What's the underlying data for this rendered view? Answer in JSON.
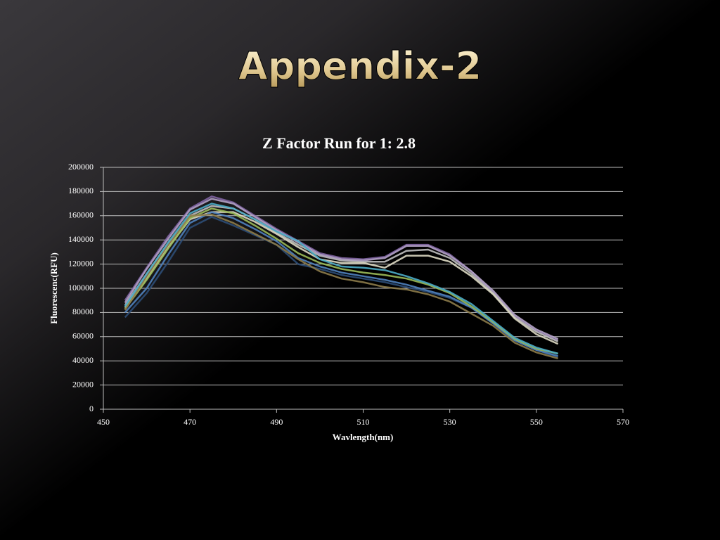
{
  "title": "Appendix-2",
  "chart_data": {
    "type": "line",
    "title": "Z Factor Run for 1: 2.8",
    "x_label": "Wavlength(nm)",
    "y_label": "Fluorescenc(RFU)",
    "x": [
      455,
      460,
      465,
      470,
      475,
      480,
      485,
      490,
      495,
      500,
      505,
      510,
      515,
      520,
      525,
      530,
      535,
      540,
      545,
      550,
      555
    ],
    "xlim": [
      450,
      570
    ],
    "xticks": [
      450,
      470,
      490,
      510,
      530,
      550,
      570
    ],
    "ylim": [
      0,
      200000
    ],
    "yticks": [
      0,
      20000,
      40000,
      60000,
      80000,
      100000,
      120000,
      140000,
      160000,
      180000,
      200000
    ],
    "grid": true,
    "series": [
      {
        "color": "#8064a2",
        "values": [
          90000,
          117000,
          143000,
          166000,
          176000,
          171000,
          160000,
          149000,
          139000,
          129000,
          125000,
          124000,
          126000,
          136000,
          136000,
          128000,
          114000,
          97000,
          77000,
          65000,
          57000
        ]
      },
      {
        "color": "#bfbfbf",
        "values": [
          86000,
          112000,
          137000,
          160000,
          168000,
          166000,
          157000,
          146000,
          136000,
          127000,
          123000,
          122000,
          122000,
          131000,
          132000,
          125000,
          112000,
          96000,
          76000,
          64000,
          56000
        ]
      },
      {
        "color": "#ddd9c3",
        "values": [
          84000,
          108000,
          134000,
          157000,
          163000,
          163000,
          155000,
          145000,
          134000,
          124000,
          121000,
          121000,
          117000,
          127000,
          127000,
          122000,
          110000,
          95000,
          75000,
          62000,
          54000
        ]
      },
      {
        "color": "#b3a2c7",
        "values": [
          88000,
          116000,
          141000,
          165000,
          174000,
          170000,
          159000,
          148000,
          138000,
          128000,
          124000,
          123000,
          125000,
          135000,
          135000,
          127000,
          114000,
          98000,
          78000,
          66000,
          58000
        ]
      },
      {
        "color": "#2c4d75",
        "values": [
          76000,
          96000,
          122000,
          150000,
          159000,
          152000,
          144000,
          136000,
          120000,
          116000,
          111000,
          108000,
          105000,
          101000,
          97000,
          92000,
          84000,
          71000,
          57000,
          49000,
          43000
        ]
      },
      {
        "color": "#4f81bd",
        "values": [
          80000,
          100000,
          128000,
          154000,
          163000,
          158000,
          149000,
          139000,
          125000,
          118000,
          113000,
          110000,
          107000,
          103000,
          98000,
          93000,
          84000,
          71000,
          57000,
          49000,
          44000
        ]
      },
      {
        "color": "#9bbb59",
        "values": [
          83000,
          107000,
          133000,
          158000,
          166000,
          162000,
          152000,
          141000,
          129000,
          121000,
          116000,
          113000,
          111000,
          108000,
          103000,
          96000,
          85000,
          72000,
          58000,
          50000,
          46000
        ]
      },
      {
        "color": "#8c7b4a",
        "values": [
          82000,
          110000,
          136000,
          160000,
          161000,
          154000,
          145000,
          136000,
          124000,
          114000,
          108000,
          105000,
          101000,
          99000,
          95000,
          89000,
          79000,
          69000,
          55000,
          47000,
          42000
        ]
      },
      {
        "color": "#4bacc6",
        "values": [
          85000,
          112000,
          138000,
          162000,
          170000,
          166000,
          157000,
          147000,
          139000,
          124000,
          118000,
          117000,
          115000,
          110000,
          104000,
          97000,
          87000,
          73000,
          59000,
          51000,
          46000
        ]
      }
    ]
  }
}
